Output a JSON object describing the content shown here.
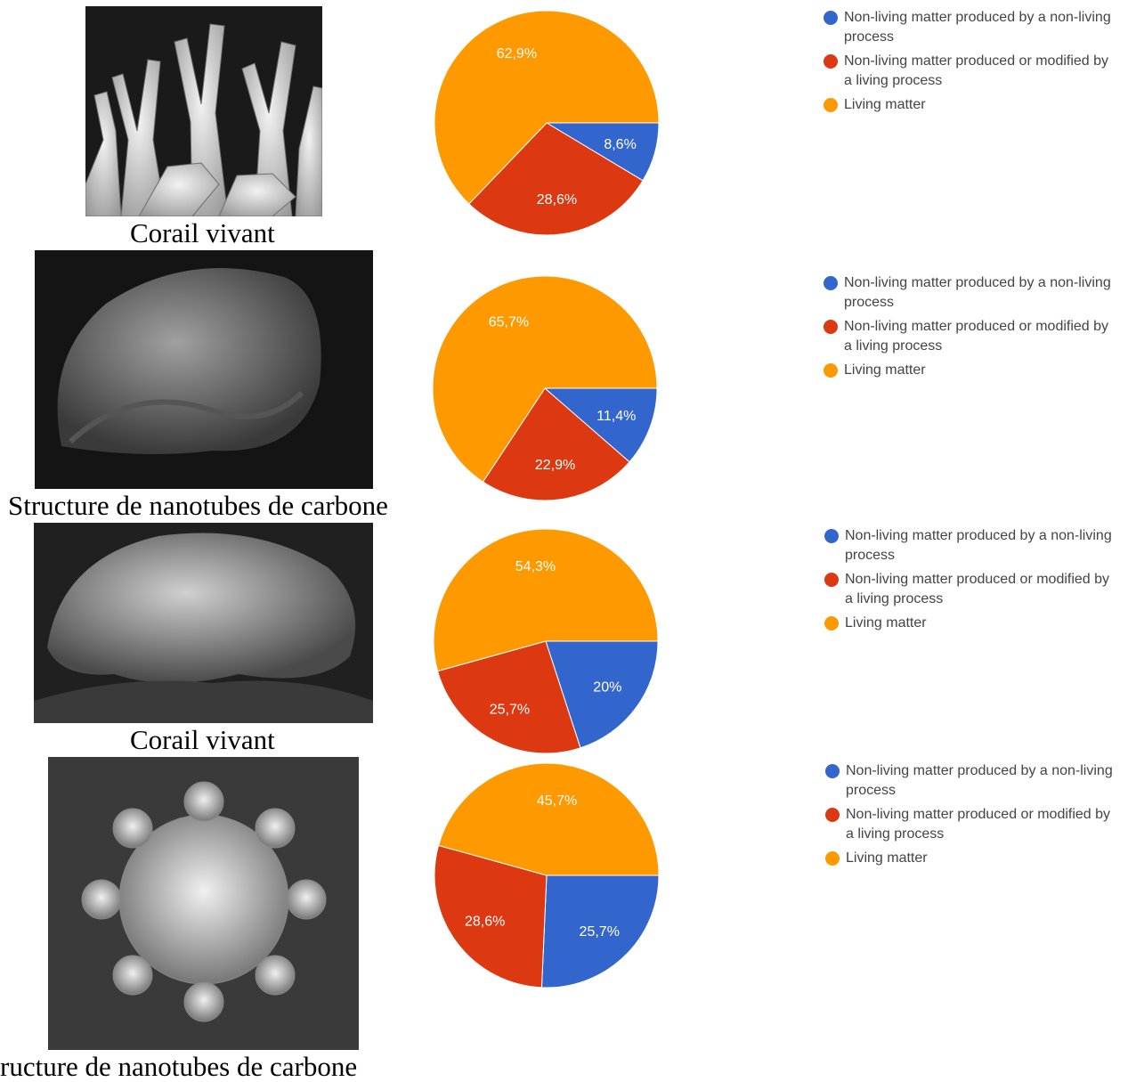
{
  "panels": [
    {
      "caption": "Corail vivant"
    },
    {
      "caption": "Structure de nanotubes de carbone"
    },
    {
      "caption": "Corail vivant"
    },
    {
      "caption": "ructure de nanotubes de carbone"
    }
  ],
  "colors": {
    "blue": "#3366cc",
    "red": "#dc3912",
    "orange": "#ff9900"
  },
  "chart_data": [
    {
      "type": "pie",
      "categories": [
        "Non-living matter produced by a non-living process",
        "Non-living matter produced or modified by a living process",
        "Living matter"
      ],
      "values": [
        8.6,
        28.6,
        62.9
      ],
      "labels": [
        "8,6%",
        "28,6%",
        "62,9%"
      ],
      "legend": [
        "Non-living matter produced by a non-living process",
        "Non-living matter produced or modified by a living process",
        "Living matter"
      ],
      "legend_position": "right"
    },
    {
      "type": "pie",
      "categories": [
        "Non-living matter produced by a non-living process",
        "Non-living matter produced or modified by a living process",
        "Living matter"
      ],
      "values": [
        11.4,
        22.9,
        65.7
      ],
      "labels": [
        "11,4%",
        "22,9%",
        "65,7%"
      ],
      "legend": [
        "Non-living matter produced by a non-living process",
        "Non-living matter produced or modified by a living process",
        "Living matter"
      ],
      "legend_position": "right"
    },
    {
      "type": "pie",
      "categories": [
        "Non-living matter produced by a non-living process",
        "Non-living matter produced or modified by a living process",
        "Living matter"
      ],
      "values": [
        20,
        25.7,
        54.3
      ],
      "labels": [
        "20%",
        "25,7%",
        "54,3%"
      ],
      "legend": [
        "Non-living matter produced by a non-living process",
        "Non-living matter produced or modified by a living process",
        "Living matter"
      ],
      "legend_position": "right"
    },
    {
      "type": "pie",
      "categories": [
        "Non-living matter produced by a non-living process",
        "Non-living matter produced or modified by a living process",
        "Living matter"
      ],
      "values": [
        25.7,
        28.6,
        45.7
      ],
      "labels": [
        "25,7%",
        "28,6%",
        "45,7%"
      ],
      "legend": [
        "Non-living matter produced by a non-living process",
        "Non-living matter produced or modified by a living process",
        "Living matter"
      ],
      "legend_position": "right"
    }
  ]
}
